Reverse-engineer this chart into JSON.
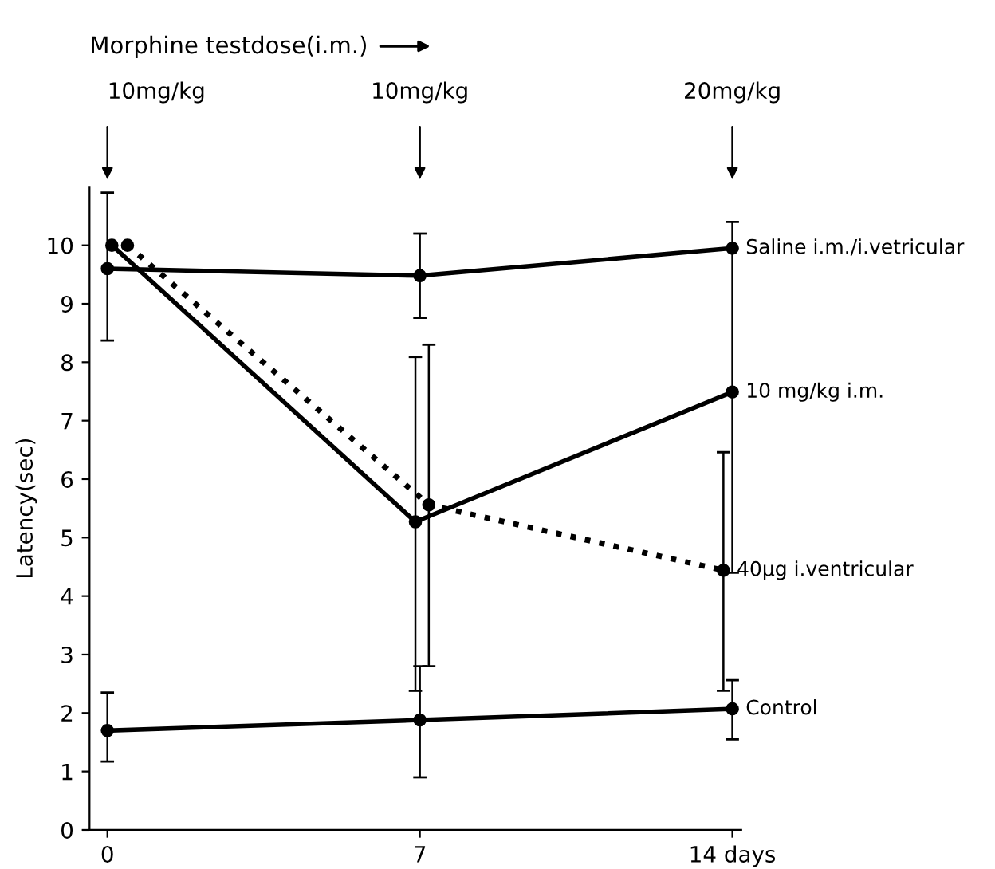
{
  "chart_data": {
    "type": "line",
    "title": "Morphine testdose(i.m.)",
    "ylabel": "Latency(sec)",
    "xlim": [
      -0.4,
      14.2
    ],
    "xticks": [
      0,
      7,
      {
        "value": 14,
        "label": "14 days"
      }
    ],
    "ylim": [
      0,
      11
    ],
    "yticks": [
      0,
      1,
      2,
      3,
      4,
      5,
      6,
      7,
      8,
      9,
      10
    ],
    "marker": "circle",
    "legend": false,
    "grid": false,
    "annotations": [
      "10mg/kg",
      "10mg/kg",
      "20mg/kg"
    ],
    "series": [
      {
        "name": "Saline i.m./i.vetricular",
        "color": "#000000",
        "line_style": "solid",
        "x": [
          0,
          7,
          14
        ],
        "values": [
          9.6,
          9.48,
          9.95
        ],
        "errors": [
          [
            8.37,
            10.9
          ],
          [
            8.76,
            10.2
          ],
          null
        ]
      },
      {
        "name": "10 mg/kg i.m.",
        "color": "#000000",
        "line_style": "solid",
        "x": [
          0.1,
          6.9,
          14
        ],
        "values": [
          10.0,
          5.27,
          7.49
        ],
        "errors": [
          null,
          [
            2.38,
            8.09
          ],
          [
            4.4,
            10.4
          ]
        ]
      },
      {
        "name": "40µg i.ventricular",
        "color": "#000000",
        "line_style": "dotted",
        "x": [
          0.45,
          7.2,
          13.8
        ],
        "values": [
          10.0,
          5.56,
          4.44
        ],
        "errors": [
          null,
          [
            2.8,
            8.3
          ],
          [
            2.38,
            6.46
          ]
        ]
      },
      {
        "name": "Control",
        "color": "#000000",
        "line_style": "solid",
        "x": [
          0,
          7,
          14
        ],
        "values": [
          1.7,
          1.88,
          2.07
        ],
        "errors": [
          [
            1.17,
            2.35
          ],
          [
            0.9,
            2.8
          ],
          [
            1.55,
            2.56
          ]
        ]
      }
    ]
  }
}
